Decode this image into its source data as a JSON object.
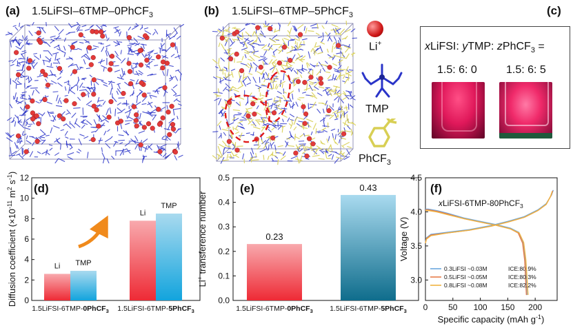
{
  "panels": {
    "a": {
      "label": "(a)",
      "title_main": "1.5LiFSI–6TMP–0PhCF",
      "title_sub": "3"
    },
    "b": {
      "label": "(b)",
      "title_main": "1.5LiFSI–6TMP–5PhCF",
      "title_sub": "3"
    },
    "c": {
      "label": "(c)"
    },
    "d": {
      "label": "(d)"
    },
    "e": {
      "label": "(e)"
    },
    "f": {
      "label": "(f)"
    }
  },
  "legend_species": {
    "li": {
      "main": "Li",
      "sup": "+"
    },
    "tmp": {
      "main": "TMP"
    },
    "phcf3": {
      "main": "PhCF",
      "sub": "3"
    }
  },
  "vials": {
    "formula_parts": [
      "x",
      "LiFSI: ",
      "y",
      "TMP: ",
      "z",
      "PhCF",
      "3",
      " ="
    ],
    "ratios": [
      "1.5: 6: 0",
      "1.5: 6: 5"
    ]
  },
  "colors": {
    "li_atom": "#e23a3a",
    "tmp": "#2a34c8",
    "phcf3": "#d8cf54",
    "bar_red": "#ee2a35",
    "bar_red_light": "#f8a9ad",
    "bar_blue": "#12a4dd",
    "bar_blue_light": "#a9daef",
    "bar_navy": "#0f6d8c",
    "arrow": "#f08a1c",
    "curve_blue": "#6aa7dd",
    "curve_orange": "#e87c4a",
    "curve_gold": "#f0b240"
  },
  "chart_data": [
    {
      "type": "bar",
      "panel": "(d)",
      "ylabel": "Diffusion coefficient (×10⁻¹¹ m² s⁻¹)",
      "ylabel_parts": {
        "main": "Diffusion coefficient (×10",
        "exp": "-11",
        "unit1": " m",
        "exp2": "2",
        "unit2": " s",
        "exp3": "-1",
        "close": ")"
      },
      "ylim": [
        0,
        12
      ],
      "yticks": [
        0,
        2,
        4,
        6,
        8,
        10,
        12
      ],
      "categories": [
        {
          "prefix": "1.5LiFSI-6TMP-",
          "bold": "0PhCF",
          "sub": "3"
        },
        {
          "prefix": "1.5LiFSI-6TMP-",
          "bold": "5PhCF",
          "sub": "3"
        }
      ],
      "series": [
        {
          "name": "Li",
          "values": [
            2.6,
            7.8
          ]
        },
        {
          "name": "TMP",
          "values": [
            2.9,
            8.5
          ]
        }
      ]
    },
    {
      "type": "bar",
      "panel": "(e)",
      "ylabel_parts": {
        "main": "Li",
        "sup": "+",
        "rest": " transference number"
      },
      "ylim": [
        0,
        0.5
      ],
      "yticks": [
        "0.0",
        "0.1",
        "0.2",
        "0.3",
        "0.4",
        "0.5"
      ],
      "categories": [
        {
          "prefix": "1.5LiFSI-6TMP-",
          "bold": "0PhCF",
          "sub": "3"
        },
        {
          "prefix": "1.5LiFSI-6TMP-",
          "bold": "5PhCF",
          "sub": "3"
        }
      ],
      "values": [
        0.23,
        0.43
      ],
      "value_labels": [
        "0.23",
        "0.43"
      ]
    },
    {
      "type": "line",
      "panel": "(f)",
      "title_parts": {
        "italic": "x",
        "main": "LiFSI-6TMP-80PhCF",
        "sub": "3"
      },
      "xlabel_parts": {
        "main": "Specific capacity (mAh g",
        "sup": "-1",
        "close": ")"
      },
      "ylabel": "Voltage (V)",
      "xlim": [
        0,
        240
      ],
      "ylim": [
        2.7,
        4.5
      ],
      "xticks": [
        0,
        50,
        100,
        150,
        200
      ],
      "yticks": [
        "3.0",
        "3.5",
        "4.0",
        "4.5"
      ],
      "series": [
        {
          "name": "0.3LiFSI ~0.03M",
          "ice": "ICE:80.9%",
          "charge": [
            [
              0,
              3.56
            ],
            [
              2,
              3.62
            ],
            [
              10,
              3.67
            ],
            [
              40,
              3.7
            ],
            [
              80,
              3.74
            ],
            [
              120,
              3.8
            ],
            [
              150,
              3.86
            ],
            [
              180,
              3.93
            ],
            [
              205,
              4.03
            ],
            [
              220,
              4.12
            ],
            [
              230,
              4.25
            ],
            [
              233,
              4.32
            ]
          ],
          "discharge": [
            [
              0,
              4.04
            ],
            [
              5,
              4.04
            ],
            [
              20,
              4.02
            ],
            [
              40,
              3.98
            ],
            [
              70,
              3.91
            ],
            [
              100,
              3.86
            ],
            [
              130,
              3.81
            ],
            [
              155,
              3.76
            ],
            [
              170,
              3.7
            ],
            [
              178,
              3.55
            ],
            [
              182,
              3.3
            ],
            [
              185,
              2.78
            ]
          ]
        },
        {
          "name": "0.5LiFSI ~0.05M",
          "ice": "ICE:80.3%",
          "charge": [
            [
              0,
              3.55
            ],
            [
              2,
              3.61
            ],
            [
              10,
              3.66
            ],
            [
              40,
              3.69
            ],
            [
              80,
              3.73
            ],
            [
              120,
              3.79
            ],
            [
              150,
              3.85
            ],
            [
              180,
              3.92
            ],
            [
              205,
              4.02
            ],
            [
              220,
              4.11
            ],
            [
              229,
              4.24
            ],
            [
              232,
              4.31
            ]
          ],
          "discharge": [
            [
              0,
              4.03
            ],
            [
              5,
              4.03
            ],
            [
              20,
              4.01
            ],
            [
              40,
              3.97
            ],
            [
              70,
              3.9
            ],
            [
              100,
              3.85
            ],
            [
              130,
              3.8
            ],
            [
              155,
              3.75
            ],
            [
              169,
              3.69
            ],
            [
              177,
              3.54
            ],
            [
              181,
              3.28
            ],
            [
              184,
              2.78
            ]
          ]
        },
        {
          "name": "0.8LiFSI ~0.08M",
          "ice": "ICE:82.2%",
          "charge": [
            [
              0,
              3.54
            ],
            [
              2,
              3.6
            ],
            [
              10,
              3.65
            ],
            [
              40,
              3.69
            ],
            [
              80,
              3.73
            ],
            [
              120,
              3.79
            ],
            [
              150,
              3.85
            ],
            [
              180,
              3.92
            ],
            [
              205,
              4.02
            ],
            [
              220,
              4.11
            ],
            [
              228,
              4.23
            ],
            [
              231,
              4.3
            ]
          ],
          "discharge": [
            [
              0,
              4.02
            ],
            [
              5,
              4.02
            ],
            [
              20,
              4.0
            ],
            [
              40,
              3.96
            ],
            [
              70,
              3.9
            ],
            [
              100,
              3.85
            ],
            [
              130,
              3.8
            ],
            [
              155,
              3.75
            ],
            [
              171,
              3.69
            ],
            [
              179,
              3.55
            ],
            [
              183,
              3.3
            ],
            [
              187,
              2.78
            ]
          ]
        }
      ]
    }
  ]
}
